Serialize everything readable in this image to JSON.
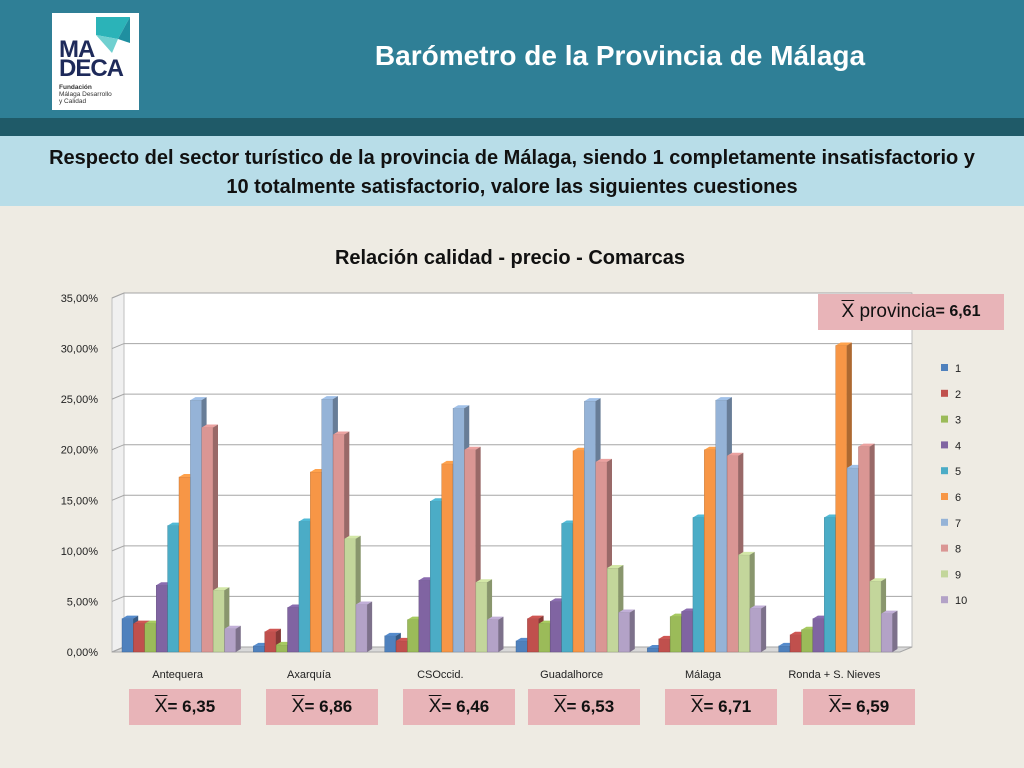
{
  "header": {
    "title": "Barómetro de la Provincia de Málaga",
    "logo_line1": "MA",
    "logo_line2": "DECA",
    "logo_sub1": "Fundación",
    "logo_sub2": "Málaga Desarrollo",
    "logo_sub3": "y Calidad"
  },
  "question": "Respecto del sector turístico de la provincia de Málaga, siendo 1 completamente insatisfactorio y 10 totalmente satisfactorio, valore las siguientes cuestiones",
  "province_mean": {
    "symbol": "X",
    "label": "provincia",
    "value": "= 6,61"
  },
  "means": [
    {
      "symbol": "X",
      "value": "= 6,35"
    },
    {
      "symbol": "X",
      "value": "= 6,86"
    },
    {
      "symbol": "X",
      "value": "= 6,46"
    },
    {
      "symbol": "X",
      "value": "= 6,53"
    },
    {
      "symbol": "X",
      "value": "= 6,71"
    },
    {
      "symbol": "X",
      "value": "= 6,59"
    }
  ],
  "chart_data": {
    "type": "bar",
    "title": "Relación calidad - precio - Comarcas",
    "xlabel": "",
    "ylabel": "",
    "ylim": [
      0,
      35
    ],
    "yticks": [
      0,
      5,
      10,
      15,
      20,
      25,
      30,
      35
    ],
    "ytick_labels": [
      "0,00%",
      "5,00%",
      "10,00%",
      "15,00%",
      "20,00%",
      "25,00%",
      "30,00%",
      "35,00%"
    ],
    "legend_position": "right",
    "grid": true,
    "categories": [
      "Antequera",
      "Axarquía",
      "CSOccid.",
      "Guadalhorce",
      "Málaga",
      "Ronda + S. Nieves"
    ],
    "series": [
      {
        "name": "1",
        "color": "#4f81bd",
        "values": [
          3.3,
          0.6,
          1.6,
          1.1,
          0.4,
          0.6
        ]
      },
      {
        "name": "2",
        "color": "#c0504d",
        "values": [
          2.8,
          2.0,
          1.1,
          3.3,
          1.3,
          1.7
        ]
      },
      {
        "name": "3",
        "color": "#9bbb59",
        "values": [
          2.8,
          0.7,
          3.2,
          2.8,
          3.5,
          2.2
        ]
      },
      {
        "name": "4",
        "color": "#8064a2",
        "values": [
          6.6,
          4.4,
          7.1,
          5.0,
          4.0,
          3.3
        ]
      },
      {
        "name": "5",
        "color": "#4bacc6",
        "values": [
          12.5,
          12.9,
          14.9,
          12.7,
          13.3,
          13.3
        ]
      },
      {
        "name": "6",
        "color": "#f79646",
        "values": [
          17.3,
          17.8,
          18.6,
          19.9,
          20.0,
          30.3
        ]
      },
      {
        "name": "7",
        "color": "#95b3d7",
        "values": [
          24.9,
          25.0,
          24.1,
          24.8,
          24.9,
          18.2
        ]
      },
      {
        "name": "8",
        "color": "#da9694",
        "values": [
          22.2,
          21.5,
          20.0,
          18.8,
          19.4,
          20.3
        ]
      },
      {
        "name": "9",
        "color": "#c3d69b",
        "values": [
          6.1,
          11.2,
          6.9,
          8.3,
          9.6,
          7.0
        ]
      },
      {
        "name": "10",
        "color": "#b3a2c7",
        "values": [
          2.3,
          4.7,
          3.2,
          3.9,
          4.3,
          3.8
        ]
      }
    ]
  }
}
